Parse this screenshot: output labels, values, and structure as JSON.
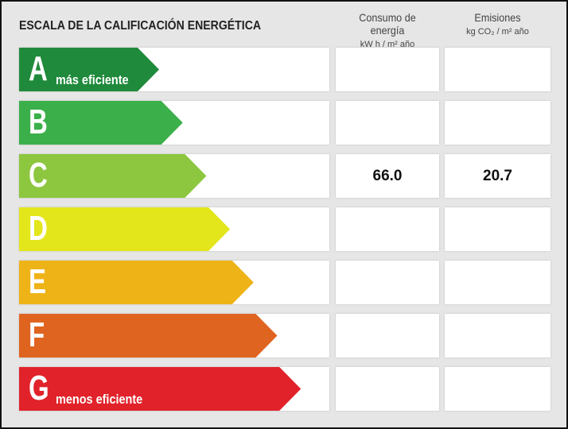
{
  "header": {
    "title": "ESCALA DE LA CALIFICACIÓN ENERGÉTICA",
    "columns": [
      {
        "title": "Consumo de energía",
        "unit": "kW h / m² año"
      },
      {
        "title": "Emisiones",
        "unit": "kg CO₂ / m² año"
      }
    ]
  },
  "rows": [
    {
      "letter": "A",
      "note": "más eficiente",
      "color": "#1f8a3b"
    },
    {
      "letter": "B",
      "color": "#3bb04a"
    },
    {
      "letter": "C",
      "color": "#8dc63f",
      "consumo": "66.0",
      "emisiones": "20.7"
    },
    {
      "letter": "D",
      "color": "#e3e61b"
    },
    {
      "letter": "E",
      "color": "#eeb316"
    },
    {
      "letter": "F",
      "color": "#df6420"
    },
    {
      "letter": "G",
      "note": "menos eficiente",
      "color": "#e1222a"
    }
  ]
}
